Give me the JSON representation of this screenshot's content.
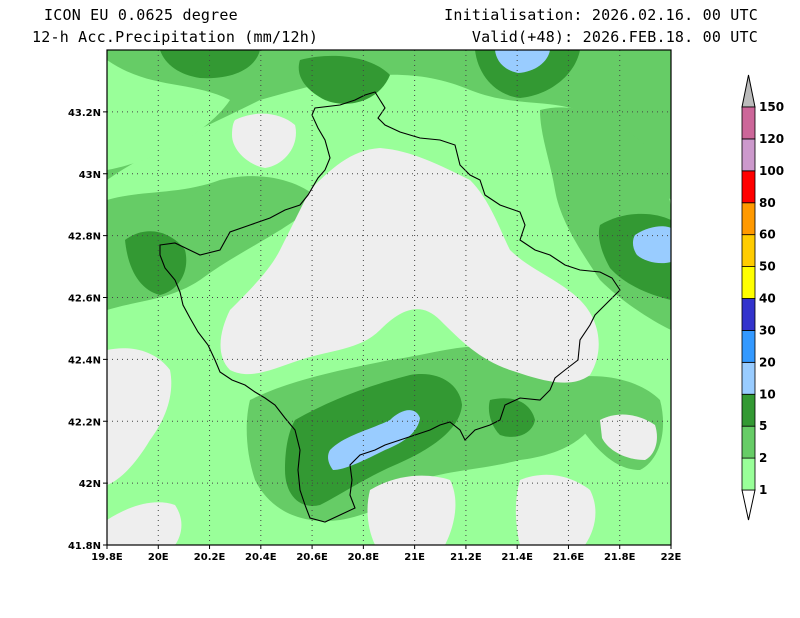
{
  "header": {
    "model": "ICON EU 0.0625 degree",
    "field": "12-h Acc.Precipitation (mm/12h)",
    "init": "Initialisation: 2026.02.16. 00 UTC",
    "valid": "Valid(+48): 2026.FEB.18. 00 UTC"
  },
  "axes": {
    "lon_labels": [
      "19.8E",
      "20E",
      "20.2E",
      "20.4E",
      "20.6E",
      "20.8E",
      "21E",
      "21.2E",
      "21.4E",
      "21.6E",
      "21.8E",
      "22E"
    ],
    "lat_labels": [
      "41.8N",
      "42N",
      "42.2N",
      "42.4N",
      "42.6N",
      "42.8N",
      "43N",
      "43.2N"
    ],
    "lon_range": [
      19.8,
      22.0
    ],
    "lat_range": [
      41.8,
      43.4
    ]
  },
  "colorbar": {
    "levels": [
      "1",
      "2",
      "5",
      "10",
      "20",
      "30",
      "40",
      "50",
      "60",
      "80",
      "100",
      "120",
      "150"
    ],
    "colors": [
      "#99ff99",
      "#66cc66",
      "#339933",
      "#99ccff",
      "#3399ff",
      "#3333cc",
      "#ffff00",
      "#ffcc00",
      "#ff9900",
      "#ff0000",
      "#cc99cc",
      "#cc6699",
      "#990099"
    ]
  },
  "map_colors": {
    "below_1": "#eeeeee",
    "level_1": "#99ff99",
    "level_2": "#66cc66",
    "level_5": "#339933",
    "level_10": "#99ccff",
    "border": "#000000",
    "grid": "#444444"
  },
  "chart_data": {
    "type": "heatmap",
    "title": "12-h Acc.Precipitation (mm/12h)",
    "x": [
      "19.8E",
      "20E",
      "20.2E",
      "20.4E",
      "20.6E",
      "20.8E",
      "21E",
      "21.2E",
      "21.4E",
      "21.6E",
      "21.8E",
      "22E"
    ],
    "y": [
      "41.8N",
      "42N",
      "42.2N",
      "42.4N",
      "42.6N",
      "42.8N",
      "43N",
      "43.2N"
    ],
    "xlim": [
      19.8,
      22.0
    ],
    "ylim": [
      41.8,
      43.4
    ],
    "legend_levels": [
      1,
      2,
      5,
      10,
      20,
      30,
      40,
      50,
      60,
      80,
      100,
      120,
      150
    ],
    "grid": true,
    "legend_position": "right"
  }
}
